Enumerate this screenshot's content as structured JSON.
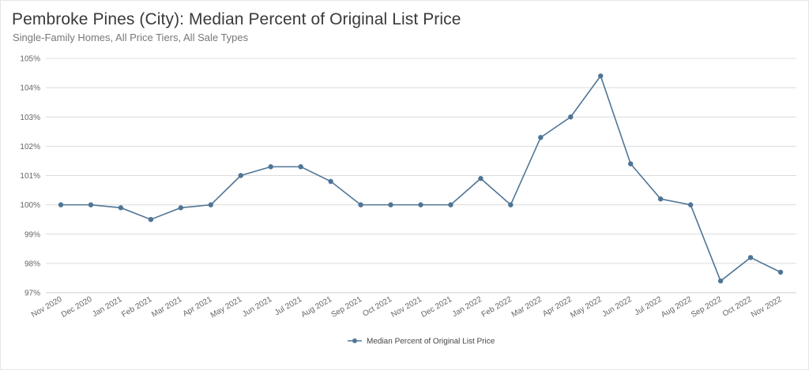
{
  "header": {
    "title": "Pembroke Pines (City): Median Percent of Original List Price",
    "subtitle": "Single-Family Homes, All Price Tiers, All Sale Types"
  },
  "colors": {
    "line": "#4f7596",
    "grid": "#dcdcdc",
    "axis": "#cfcfcf"
  },
  "chart_data": {
    "type": "line",
    "title": "Pembroke Pines (City): Median Percent of Original List Price",
    "subtitle": "Single-Family Homes, All Price Tiers, All Sale Types",
    "xlabel": "",
    "ylabel": "",
    "ylim": [
      97,
      105
    ],
    "yticks": [
      "97%",
      "98%",
      "99%",
      "100%",
      "101%",
      "102%",
      "103%",
      "104%",
      "105%"
    ],
    "grid": true,
    "legend": "bottom-center",
    "categories": [
      "Nov 2020",
      "Dec 2020",
      "Jan 2021",
      "Feb 2021",
      "Mar 2021",
      "Apr 2021",
      "May 2021",
      "Jun 2021",
      "Jul 2021",
      "Aug 2021",
      "Sep 2021",
      "Oct 2021",
      "Nov 2021",
      "Dec 2021",
      "Jan 2022",
      "Feb 2022",
      "Mar 2022",
      "Apr 2022",
      "May 2022",
      "Jun 2022",
      "Jul 2022",
      "Aug 2022",
      "Sep 2022",
      "Oct 2022",
      "Nov 2022"
    ],
    "series": [
      {
        "name": "Median Percent of Original List Price",
        "values": [
          100.0,
          100.0,
          99.9,
          99.5,
          99.9,
          100.0,
          101.0,
          101.3,
          101.3,
          100.8,
          100.0,
          100.0,
          100.0,
          100.0,
          100.9,
          100.0,
          102.3,
          103.0,
          104.4,
          101.4,
          100.2,
          100.0,
          97.4,
          98.2,
          97.7
        ]
      }
    ]
  }
}
